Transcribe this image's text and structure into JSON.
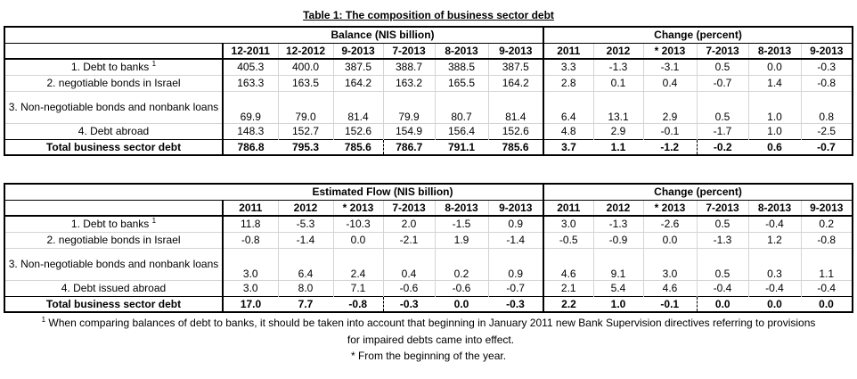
{
  "title": "Table 1: The composition of business sector debt",
  "table1": {
    "group_left": "Balance (NIS billion)",
    "group_right": "Change (percent)",
    "cols_left": [
      "12-2011",
      "12-2012",
      "9-2013",
      "7-2013",
      "8-2013",
      "9-2013"
    ],
    "cols_right": [
      "2011",
      "2012",
      "* 2013",
      "7-2013",
      "8-2013",
      "9-2013"
    ],
    "rows": [
      {
        "label": "1. Debt to banks",
        "sup": "1",
        "values": [
          "405.3",
          "400.0",
          "387.5",
          "388.7",
          "388.5",
          "387.5",
          "3.3",
          "-1.3",
          "-3.1",
          "0.5",
          "0.0",
          "-0.3"
        ]
      },
      {
        "label": "2. negotiable bonds in Israel",
        "sup": "",
        "values": [
          "163.3",
          "163.5",
          "164.2",
          "163.2",
          "165.5",
          "164.2",
          "2.8",
          "0.1",
          "0.4",
          "-0.7",
          "1.4",
          "-0.8"
        ]
      },
      {
        "label": "3. Non-negotiable bonds and nonbank loans",
        "sup": "",
        "values": [
          "69.9",
          "79.0",
          "81.4",
          "79.9",
          "80.7",
          "81.4",
          "6.4",
          "13.1",
          "2.9",
          "0.5",
          "1.0",
          "0.8"
        ]
      },
      {
        "label": "4. Debt abroad",
        "sup": "",
        "values": [
          "148.3",
          "152.7",
          "152.6",
          "154.9",
          "156.4",
          "152.6",
          "4.8",
          "2.9",
          "-0.1",
          "-1.7",
          "1.0",
          "-2.5"
        ]
      }
    ],
    "total": {
      "label": "Total business sector debt",
      "values": [
        "786.8",
        "795.3",
        "785.6",
        "786.7",
        "791.1",
        "785.6",
        "3.7",
        "1.1",
        "-1.2",
        "-0.2",
        "0.6",
        "-0.7"
      ]
    }
  },
  "table2": {
    "group_left": "Estimated Flow (NIS billion)",
    "group_right": "Change (percent)",
    "cols_left": [
      "2011",
      "2012",
      "* 2013",
      "7-2013",
      "8-2013",
      "9-2013"
    ],
    "cols_right": [
      "2011",
      "2012",
      "* 2013",
      "7-2013",
      "8-2013",
      "9-2013"
    ],
    "rows": [
      {
        "label": "1. Debt to banks",
        "sup": "1",
        "values": [
          "11.8",
          "-5.3",
          "-10.3",
          "2.0",
          "-1.5",
          "0.9",
          "3.0",
          "-1.3",
          "-2.6",
          "0.5",
          "-0.4",
          "0.2"
        ]
      },
      {
        "label": "2. negotiable bonds in Israel",
        "sup": "",
        "values": [
          "-0.8",
          "-1.4",
          "0.0",
          "-2.1",
          "1.9",
          "-1.4",
          "-0.5",
          "-0.9",
          "0.0",
          "-1.3",
          "1.2",
          "-0.8"
        ]
      },
      {
        "label": "3. Non-negotiable bonds and nonbank loans",
        "sup": "",
        "values": [
          "3.0",
          "6.4",
          "2.4",
          "0.4",
          "0.2",
          "0.9",
          "4.6",
          "9.1",
          "3.0",
          "0.5",
          "0.3",
          "1.1"
        ]
      },
      {
        "label": "4. Debt issued abroad",
        "sup": "",
        "values": [
          "3.0",
          "8.0",
          "7.1",
          "-0.6",
          "-0.6",
          "-0.7",
          "2.1",
          "5.4",
          "4.6",
          "-0.4",
          "-0.4",
          "-0.4"
        ]
      }
    ],
    "total": {
      "label": "Total business sector debt",
      "values": [
        "17.0",
        "7.7",
        "-0.8",
        "-0.3",
        "0.0",
        "-0.3",
        "2.2",
        "1.0",
        "-0.1",
        "0.0",
        "0.0",
        "0.0"
      ]
    }
  },
  "footnotes": {
    "note1_marker": "1",
    "note1_line1": "When comparing balances of debt to banks, it should be taken into account that beginning in January 2011 new Bank Supervision directives referring to provisions",
    "note1_line2": "for impaired debts came into effect.",
    "note2": "* From the beginning of the year."
  }
}
